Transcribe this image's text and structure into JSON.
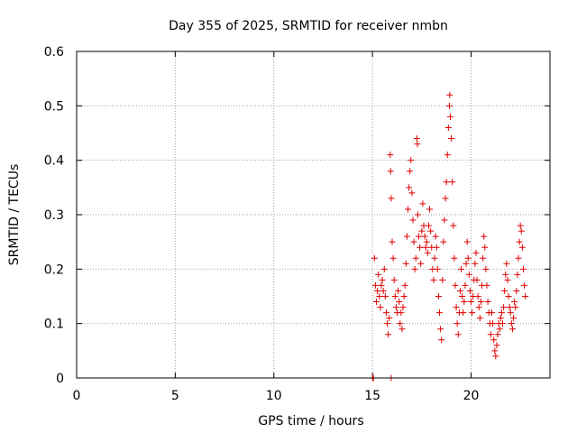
{
  "chart_data": {
    "type": "scatter",
    "title": "Day 355 of 2025, SRMTID for receiver nmbn",
    "xlabel": "GPS time / hours",
    "ylabel": "SRMTID / TECUs",
    "xlim": [
      0,
      24
    ],
    "ylim": [
      0,
      0.6
    ],
    "x_ticks": [
      0,
      5,
      10,
      15,
      20
    ],
    "x_tick_labels": [
      "0",
      "5",
      "10",
      "15",
      "20"
    ],
    "y_ticks": [
      0,
      0.1,
      0.2,
      0.3,
      0.4,
      0.5,
      0.6
    ],
    "y_tick_labels": [
      "0",
      "0.1",
      "0.2",
      "0.3",
      "0.4",
      "0.5",
      "0.6"
    ],
    "grid": true,
    "marker": "plus",
    "series": [
      {
        "name": "SRMTID",
        "color": "#e00000",
        "points": [
          [
            15.0,
            0.0
          ],
          [
            15.05,
            0.0
          ],
          [
            15.1,
            0.22
          ],
          [
            15.15,
            0.17
          ],
          [
            15.2,
            0.14
          ],
          [
            15.25,
            0.16
          ],
          [
            15.3,
            0.19
          ],
          [
            15.35,
            0.15
          ],
          [
            15.4,
            0.13
          ],
          [
            15.45,
            0.17
          ],
          [
            15.5,
            0.18
          ],
          [
            15.55,
            0.16
          ],
          [
            15.6,
            0.2
          ],
          [
            15.65,
            0.15
          ],
          [
            15.7,
            0.12
          ],
          [
            15.75,
            0.1
          ],
          [
            15.8,
            0.08
          ],
          [
            15.85,
            0.11
          ],
          [
            15.9,
            0.41
          ],
          [
            15.92,
            0.38
          ],
          [
            15.95,
            0.33
          ],
          [
            15.95,
            0.0
          ],
          [
            16.0,
            0.25
          ],
          [
            16.05,
            0.22
          ],
          [
            16.1,
            0.18
          ],
          [
            16.15,
            0.15
          ],
          [
            16.2,
            0.13
          ],
          [
            16.25,
            0.12
          ],
          [
            16.3,
            0.16
          ],
          [
            16.35,
            0.14
          ],
          [
            16.4,
            0.1
          ],
          [
            16.45,
            0.12
          ],
          [
            16.5,
            0.09
          ],
          [
            16.55,
            0.13
          ],
          [
            16.6,
            0.15
          ],
          [
            16.65,
            0.17
          ],
          [
            16.7,
            0.21
          ],
          [
            16.75,
            0.26
          ],
          [
            16.8,
            0.31
          ],
          [
            16.85,
            0.35
          ],
          [
            16.9,
            0.38
          ],
          [
            16.95,
            0.4
          ],
          [
            17.0,
            0.34
          ],
          [
            17.05,
            0.29
          ],
          [
            17.1,
            0.25
          ],
          [
            17.15,
            0.2
          ],
          [
            17.2,
            0.22
          ],
          [
            17.25,
            0.44
          ],
          [
            17.28,
            0.43
          ],
          [
            17.3,
            0.3
          ],
          [
            17.35,
            0.26
          ],
          [
            17.4,
            0.24
          ],
          [
            17.45,
            0.21
          ],
          [
            17.5,
            0.27
          ],
          [
            17.55,
            0.32
          ],
          [
            17.6,
            0.28
          ],
          [
            17.65,
            0.26
          ],
          [
            17.7,
            0.24
          ],
          [
            17.75,
            0.25
          ],
          [
            17.8,
            0.23
          ],
          [
            17.85,
            0.28
          ],
          [
            17.9,
            0.31
          ],
          [
            17.95,
            0.27
          ],
          [
            18.0,
            0.24
          ],
          [
            18.05,
            0.2
          ],
          [
            18.1,
            0.18
          ],
          [
            18.15,
            0.22
          ],
          [
            18.2,
            0.26
          ],
          [
            18.25,
            0.24
          ],
          [
            18.3,
            0.2
          ],
          [
            18.35,
            0.15
          ],
          [
            18.4,
            0.12
          ],
          [
            18.45,
            0.09
          ],
          [
            18.5,
            0.07
          ],
          [
            18.55,
            0.18
          ],
          [
            18.6,
            0.25
          ],
          [
            18.65,
            0.29
          ],
          [
            18.7,
            0.33
          ],
          [
            18.75,
            0.36
          ],
          [
            18.8,
            0.41
          ],
          [
            18.85,
            0.46
          ],
          [
            18.9,
            0.5
          ],
          [
            18.92,
            0.52
          ],
          [
            18.95,
            0.48
          ],
          [
            19.0,
            0.44
          ],
          [
            19.05,
            0.36
          ],
          [
            19.1,
            0.28
          ],
          [
            19.15,
            0.22
          ],
          [
            19.2,
            0.17
          ],
          [
            19.25,
            0.13
          ],
          [
            19.3,
            0.1
          ],
          [
            19.35,
            0.08
          ],
          [
            19.4,
            0.12
          ],
          [
            19.45,
            0.16
          ],
          [
            19.5,
            0.2
          ],
          [
            19.55,
            0.15
          ],
          [
            19.6,
            0.12
          ],
          [
            19.65,
            0.14
          ],
          [
            19.7,
            0.17
          ],
          [
            19.75,
            0.21
          ],
          [
            19.8,
            0.25
          ],
          [
            19.85,
            0.22
          ],
          [
            19.9,
            0.19
          ],
          [
            19.95,
            0.16
          ],
          [
            20.0,
            0.14
          ],
          [
            20.05,
            0.12
          ],
          [
            20.1,
            0.15
          ],
          [
            20.15,
            0.18
          ],
          [
            20.2,
            0.21
          ],
          [
            20.25,
            0.23
          ],
          [
            20.3,
            0.18
          ],
          [
            20.35,
            0.15
          ],
          [
            20.4,
            0.13
          ],
          [
            20.45,
            0.11
          ],
          [
            20.5,
            0.14
          ],
          [
            20.55,
            0.17
          ],
          [
            20.6,
            0.22
          ],
          [
            20.65,
            0.26
          ],
          [
            20.7,
            0.24
          ],
          [
            20.75,
            0.2
          ],
          [
            20.8,
            0.17
          ],
          [
            20.85,
            0.14
          ],
          [
            20.9,
            0.12
          ],
          [
            20.95,
            0.1
          ],
          [
            21.0,
            0.08
          ],
          [
            21.05,
            0.12
          ],
          [
            21.1,
            0.1
          ],
          [
            21.15,
            0.07
          ],
          [
            21.2,
            0.05
          ],
          [
            21.25,
            0.04
          ],
          [
            21.3,
            0.06
          ],
          [
            21.35,
            0.08
          ],
          [
            21.4,
            0.1
          ],
          [
            21.45,
            0.09
          ],
          [
            21.5,
            0.11
          ],
          [
            21.55,
            0.12
          ],
          [
            21.6,
            0.1
          ],
          [
            21.65,
            0.13
          ],
          [
            21.7,
            0.16
          ],
          [
            21.75,
            0.19
          ],
          [
            21.8,
            0.21
          ],
          [
            21.85,
            0.18
          ],
          [
            21.9,
            0.15
          ],
          [
            21.95,
            0.13
          ],
          [
            22.0,
            0.12
          ],
          [
            22.05,
            0.1
          ],
          [
            22.1,
            0.09
          ],
          [
            22.15,
            0.11
          ],
          [
            22.2,
            0.14
          ],
          [
            22.25,
            0.13
          ],
          [
            22.3,
            0.16
          ],
          [
            22.35,
            0.19
          ],
          [
            22.4,
            0.22
          ],
          [
            22.45,
            0.25
          ],
          [
            22.5,
            0.28
          ],
          [
            22.55,
            0.27
          ],
          [
            22.6,
            0.24
          ],
          [
            22.65,
            0.2
          ],
          [
            22.7,
            0.17
          ],
          [
            22.75,
            0.15
          ]
        ]
      }
    ]
  }
}
